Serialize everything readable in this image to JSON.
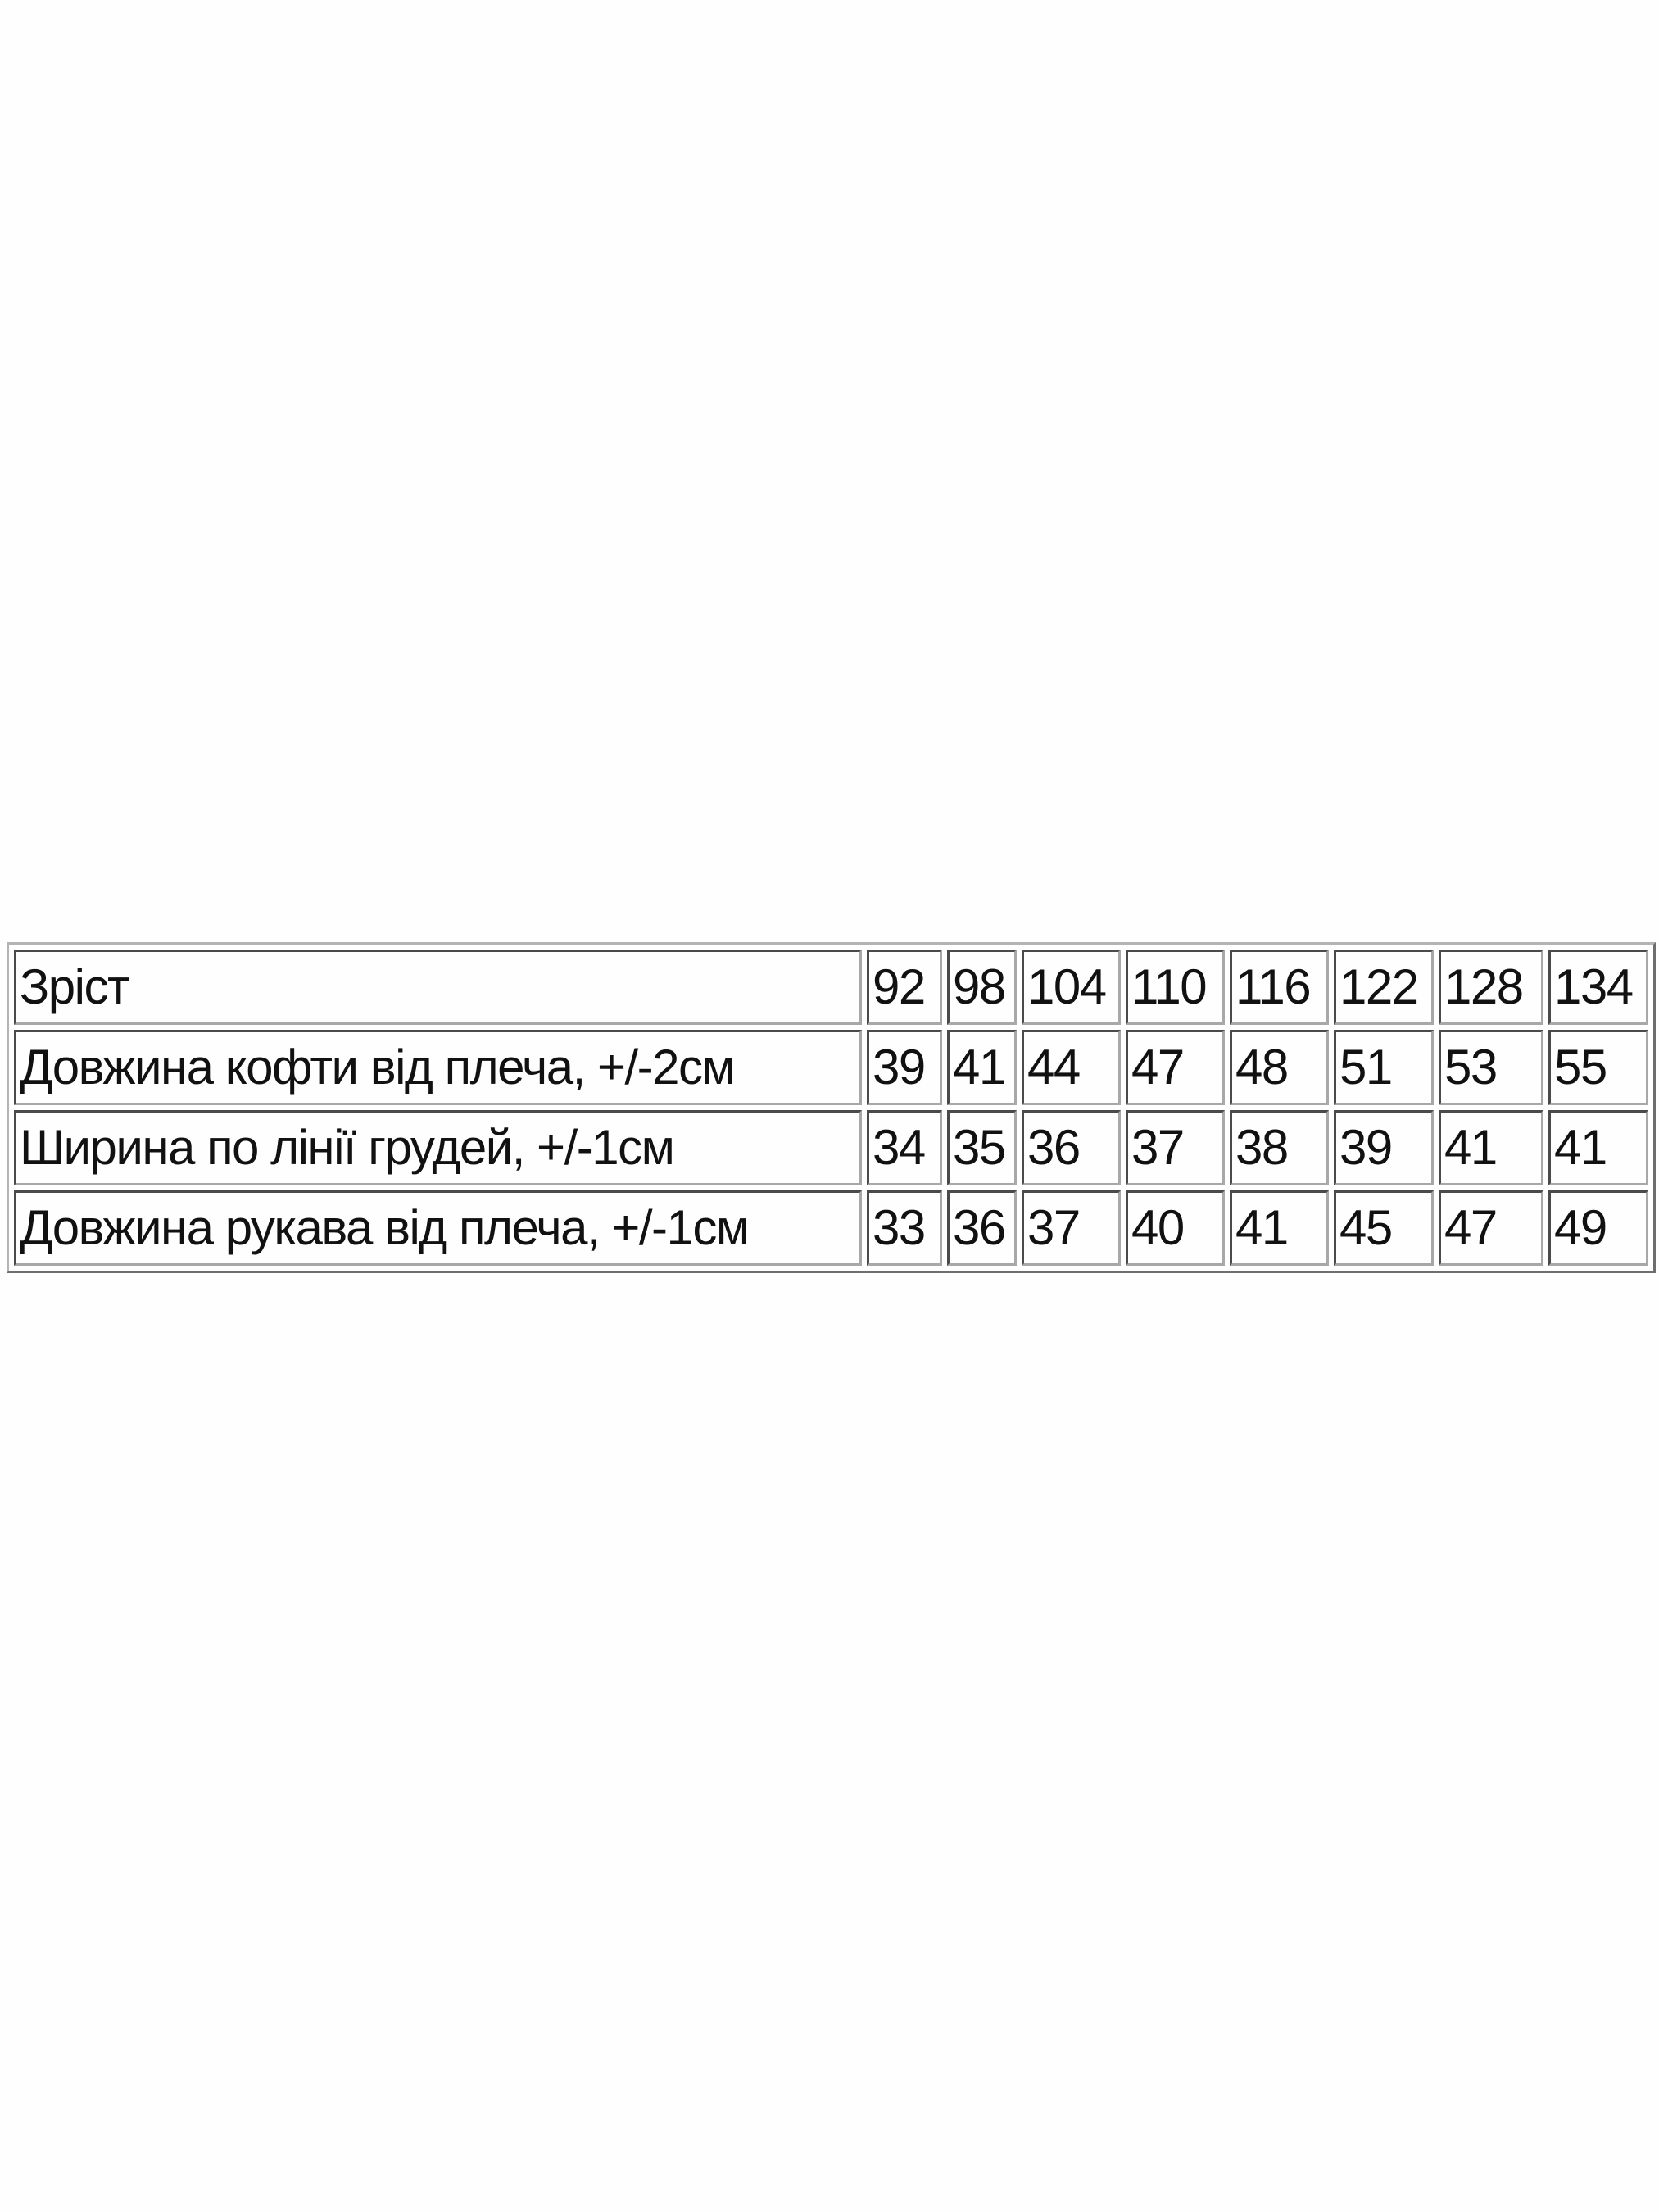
{
  "table": {
    "rows": [
      {
        "label": "Зріст",
        "values": [
          "92",
          "98",
          "104",
          "110",
          "116",
          "122",
          "128",
          "134"
        ]
      },
      {
        "label": "Довжина кофти від плеча, +/-2см",
        "values": [
          "39",
          "41",
          "44",
          "47",
          "48",
          "51",
          "53",
          "55"
        ]
      },
      {
        "label": "Ширина по лінії грудей, +/-1см",
        "values": [
          "34",
          "35",
          "36",
          "37",
          "38",
          "39",
          "41",
          "41"
        ]
      },
      {
        "label": "Довжина рукава від плеча, +/-1см",
        "values": [
          "33",
          "36",
          "37",
          "40",
          "41",
          "45",
          "47",
          "49"
        ]
      }
    ]
  }
}
